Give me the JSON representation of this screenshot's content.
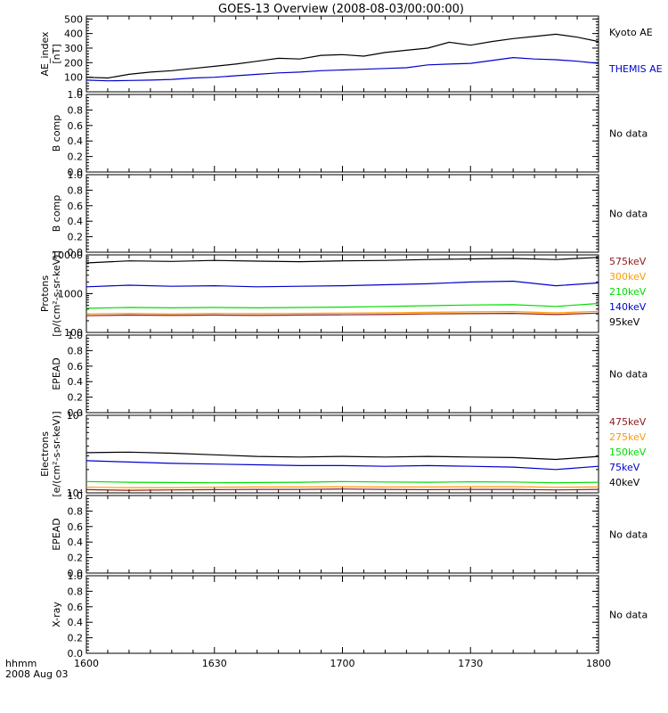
{
  "title": "GOES-13 Overview (2008-08-03/00:00:00)",
  "time_axis": {
    "corner_label_1": "hhmm",
    "corner_label_2": "2008 Aug 03",
    "ticks": [
      "1600",
      "1630",
      "1700",
      "1730",
      "1800"
    ],
    "range_minutes": [
      0,
      120
    ]
  },
  "panels": [
    {
      "id": "ae",
      "ylabel_line1": "AE_index",
      "ylabel_line2": "[nT]",
      "scale": "linear",
      "ylim": [
        0,
        520
      ],
      "ticks": [
        {
          "v": 0,
          "t": "0"
        },
        {
          "v": 100,
          "t": "100"
        },
        {
          "v": 200,
          "t": "200"
        },
        {
          "v": 300,
          "t": "300"
        },
        {
          "v": 400,
          "t": "400"
        },
        {
          "v": 500,
          "t": "500"
        }
      ],
      "legend": [
        {
          "label": "Kyoto AE",
          "color": "#000000"
        },
        {
          "label": "THEMIS AE",
          "color": "#0000cc"
        }
      ],
      "series": [
        {
          "name": "Kyoto AE",
          "color": "#000000",
          "x": [
            0,
            5,
            10,
            15,
            20,
            25,
            30,
            35,
            40,
            45,
            50,
            55,
            60,
            65,
            70,
            75,
            80,
            85,
            90,
            95,
            100,
            105,
            110,
            115,
            120
          ],
          "y": [
            100,
            95,
            120,
            135,
            145,
            160,
            175,
            190,
            210,
            230,
            225,
            250,
            255,
            245,
            270,
            285,
            300,
            340,
            320,
            345,
            365,
            380,
            395,
            375,
            345
          ]
        },
        {
          "name": "THEMIS AE",
          "color": "#0000cc",
          "x": [
            0,
            5,
            10,
            15,
            20,
            25,
            30,
            35,
            40,
            45,
            50,
            55,
            60,
            65,
            70,
            75,
            80,
            85,
            90,
            95,
            100,
            105,
            110,
            115,
            120
          ],
          "y": [
            80,
            75,
            78,
            80,
            85,
            95,
            100,
            110,
            120,
            130,
            135,
            145,
            150,
            155,
            160,
            165,
            185,
            190,
            195,
            215,
            235,
            225,
            220,
            210,
            195
          ]
        }
      ]
    },
    {
      "id": "b1",
      "ylabel_line1": "B comp",
      "ylabel_line2": "",
      "scale": "linear",
      "ylim": [
        0,
        1.0
      ],
      "ticks": [
        {
          "v": 0,
          "t": "0.0"
        },
        {
          "v": 0.2,
          "t": "0.2"
        },
        {
          "v": 0.4,
          "t": "0.4"
        },
        {
          "v": 0.6,
          "t": "0.6"
        },
        {
          "v": 0.8,
          "t": "0.8"
        },
        {
          "v": 1.0,
          "t": "1.0"
        }
      ],
      "nodata": "No data",
      "series": []
    },
    {
      "id": "b2",
      "ylabel_line1": "B comp",
      "ylabel_line2": "",
      "scale": "linear",
      "ylim": [
        0,
        1.0
      ],
      "ticks": [
        {
          "v": 0,
          "t": "0.0"
        },
        {
          "v": 0.2,
          "t": "0.2"
        },
        {
          "v": 0.4,
          "t": "0.4"
        },
        {
          "v": 0.6,
          "t": "0.6"
        },
        {
          "v": 0.8,
          "t": "0.8"
        },
        {
          "v": 1.0,
          "t": "1.0"
        }
      ],
      "nodata": "No data",
      "series": []
    },
    {
      "id": "protons",
      "ylabel_line1": "Protons",
      "ylabel_line2": "[p/(cm²-s-sr-keV)]",
      "scale": "log",
      "ylim": [
        100,
        10000
      ],
      "ticks": [
        {
          "v": 100,
          "t": "100"
        },
        {
          "v": 1000,
          "t": "1000"
        },
        {
          "v": 10000,
          "t": "10000"
        }
      ],
      "legend": [
        {
          "label": "575keV",
          "color": "#8b1a1a"
        },
        {
          "label": "300keV",
          "color": "#ff9900"
        },
        {
          "label": "210keV",
          "color": "#00dd00"
        },
        {
          "label": "140keV",
          "color": "#0000cc"
        },
        {
          "label": "95keV",
          "color": "#000000"
        }
      ],
      "series": [
        {
          "name": "95keV",
          "color": "#000000",
          "x": [
            0,
            10,
            20,
            30,
            40,
            50,
            60,
            70,
            80,
            90,
            100,
            110,
            120
          ],
          "y": [
            6200,
            7000,
            6800,
            7200,
            6900,
            6700,
            7000,
            7200,
            7600,
            7900,
            8100,
            7600,
            8600
          ]
        },
        {
          "name": "140keV",
          "color": "#0000cc",
          "x": [
            0,
            10,
            20,
            30,
            40,
            50,
            60,
            70,
            80,
            90,
            100,
            110,
            120
          ],
          "y": [
            1500,
            1650,
            1550,
            1600,
            1500,
            1550,
            1600,
            1700,
            1800,
            2000,
            2100,
            1600,
            1900
          ]
        },
        {
          "name": "210keV",
          "color": "#00dd00",
          "x": [
            0,
            10,
            20,
            30,
            40,
            50,
            60,
            70,
            80,
            90,
            100,
            110,
            120
          ],
          "y": [
            420,
            440,
            430,
            440,
            430,
            440,
            450,
            470,
            490,
            510,
            520,
            470,
            560
          ]
        },
        {
          "name": "300keV",
          "color": "#ff9900",
          "x": [
            0,
            10,
            20,
            30,
            40,
            50,
            60,
            70,
            80,
            90,
            100,
            110,
            120
          ],
          "y": [
            300,
            310,
            300,
            310,
            305,
            310,
            315,
            320,
            330,
            340,
            345,
            320,
            350
          ]
        },
        {
          "name": "575keV",
          "color": "#8b1a1a",
          "x": [
            0,
            10,
            20,
            30,
            40,
            50,
            60,
            70,
            80,
            90,
            100,
            110,
            120
          ],
          "y": [
            270,
            280,
            275,
            280,
            275,
            280,
            285,
            290,
            300,
            305,
            310,
            290,
            315
          ]
        }
      ]
    },
    {
      "id": "epead1",
      "ylabel_line1": "EPEAD",
      "ylabel_line2": "",
      "scale": "linear",
      "ylim": [
        0,
        1.0
      ],
      "ticks": [
        {
          "v": 0,
          "t": "0.0"
        },
        {
          "v": 0.2,
          "t": "0.2"
        },
        {
          "v": 0.4,
          "t": "0.4"
        },
        {
          "v": 0.6,
          "t": "0.6"
        },
        {
          "v": 0.8,
          "t": "0.8"
        },
        {
          "v": 1.0,
          "t": "1.0"
        }
      ],
      "nodata": "No data",
      "series": []
    },
    {
      "id": "electrons",
      "ylabel_line1": "Electrons",
      "ylabel_line2": "[e/(cm²-s-sr-keV)]",
      "scale": "log",
      "ylim": [
        10000,
        100000
      ],
      "ticks": [
        {
          "v": 10000,
          "t": "10⁴"
        },
        {
          "v": 100000,
          "t": "10⁵"
        }
      ],
      "legend": [
        {
          "label": "475keV",
          "color": "#8b1a1a"
        },
        {
          "label": "275keV",
          "color": "#ff9900"
        },
        {
          "label": "150keV",
          "color": "#00dd00"
        },
        {
          "label": "75keV",
          "color": "#0000cc"
        },
        {
          "label": "40keV",
          "color": "#000000"
        }
      ],
      "series": [
        {
          "name": "40keV",
          "color": "#000000",
          "x": [
            0,
            10,
            20,
            30,
            40,
            50,
            60,
            70,
            80,
            90,
            100,
            110,
            120
          ],
          "y": [
            33000,
            33500,
            32500,
            31000,
            29500,
            29000,
            29500,
            29000,
            29500,
            29000,
            28500,
            27000,
            29500
          ]
        },
        {
          "name": "75keV",
          "color": "#0000cc",
          "x": [
            0,
            10,
            20,
            30,
            40,
            50,
            60,
            70,
            80,
            90,
            100,
            110,
            120
          ],
          "y": [
            26000,
            25000,
            24000,
            23500,
            23000,
            22500,
            22500,
            22000,
            22500,
            22000,
            21500,
            20000,
            22000
          ]
        },
        {
          "name": "150keV",
          "color": "#00dd00",
          "x": [
            0,
            10,
            20,
            30,
            40,
            50,
            60,
            70,
            80,
            90,
            100,
            110,
            120
          ],
          "y": [
            14000,
            13700,
            13600,
            13500,
            13600,
            13700,
            14000,
            13800,
            13700,
            13900,
            13800,
            13500,
            13700
          ]
        },
        {
          "name": "275keV",
          "color": "#ff9900",
          "x": [
            0,
            10,
            20,
            30,
            40,
            50,
            60,
            70,
            80,
            90,
            100,
            110,
            120
          ],
          "y": [
            11800,
            11700,
            11700,
            11800,
            11900,
            11900,
            12000,
            11900,
            11900,
            12000,
            12000,
            11800,
            11900
          ]
        },
        {
          "name": "475keV",
          "color": "#8b1a1a",
          "x": [
            0,
            10,
            20,
            30,
            40,
            50,
            60,
            70,
            80,
            90,
            100,
            110,
            120
          ],
          "y": [
            11000,
            10800,
            10900,
            11000,
            11100,
            11100,
            11200,
            11100,
            11000,
            11100,
            11100,
            10900,
            11100
          ]
        }
      ]
    },
    {
      "id": "epead2",
      "ylabel_line1": "EPEAD",
      "ylabel_line2": "",
      "scale": "linear",
      "ylim": [
        0,
        1.0
      ],
      "ticks": [
        {
          "v": 0,
          "t": "0.0"
        },
        {
          "v": 0.2,
          "t": "0.2"
        },
        {
          "v": 0.4,
          "t": "0.4"
        },
        {
          "v": 0.6,
          "t": "0.6"
        },
        {
          "v": 0.8,
          "t": "0.8"
        },
        {
          "v": 1.0,
          "t": "1.0"
        }
      ],
      "nodata": "No data",
      "series": []
    },
    {
      "id": "xray",
      "ylabel_line1": "X-ray",
      "ylabel_line2": "",
      "scale": "linear",
      "ylim": [
        0,
        1.0
      ],
      "ticks": [
        {
          "v": 0,
          "t": "0.0"
        },
        {
          "v": 0.2,
          "t": "0.2"
        },
        {
          "v": 0.4,
          "t": "0.4"
        },
        {
          "v": 0.6,
          "t": "0.6"
        },
        {
          "v": 0.8,
          "t": "0.8"
        },
        {
          "v": 1.0,
          "t": "1.0"
        }
      ],
      "nodata": "No data",
      "series": []
    }
  ],
  "chart_data": {
    "type": "line",
    "title": "GOES-13 Overview (2008-08-03/00:00:00)",
    "xlabel": "hhmm",
    "x_ticks": [
      "1600",
      "1630",
      "1700",
      "1730",
      "1800"
    ],
    "x_unit": "minutes after 16:00",
    "series": [
      {
        "name": "Kyoto AE",
        "panel": "AE_index [nT]"
      },
      {
        "name": "THEMIS AE",
        "panel": "AE_index [nT]"
      },
      {
        "name": "575keV",
        "panel": "Protons"
      },
      {
        "name": "300keV",
        "panel": "Protons"
      },
      {
        "name": "210keV",
        "panel": "Protons"
      },
      {
        "name": "140keV",
        "panel": "Protons"
      },
      {
        "name": "95keV",
        "panel": "Protons"
      },
      {
        "name": "475keV",
        "panel": "Electrons"
      },
      {
        "name": "275keV",
        "panel": "Electrons"
      },
      {
        "name": "150keV",
        "panel": "Electrons"
      },
      {
        "name": "75keV",
        "panel": "Electrons"
      },
      {
        "name": "40keV",
        "panel": "Electrons"
      }
    ],
    "empty_panels": [
      "B comp",
      "B comp",
      "EPEAD",
      "EPEAD",
      "X-ray"
    ],
    "empty_panel_note": "No data"
  }
}
